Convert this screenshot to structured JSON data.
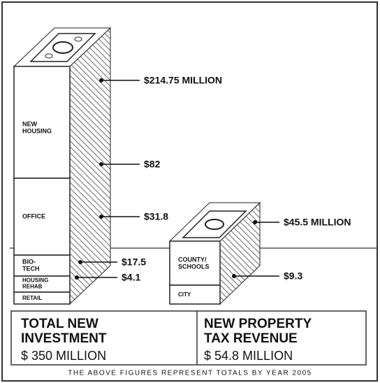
{
  "left_stack": {
    "segments": [
      {
        "label": [
          "NEW",
          "HOUSING"
        ],
        "amount": "$214.75 MILLION"
      },
      {
        "label": [
          "OFFICE"
        ],
        "amount": "$82"
      },
      {
        "label": [
          "BIO-",
          "TECH"
        ],
        "amount": "$31.8"
      },
      {
        "label": [
          "HOUSING",
          "REHAB"
        ],
        "amount": "$17.5"
      },
      {
        "label": [
          "RETAIL"
        ],
        "amount": "$4.1"
      }
    ]
  },
  "right_stack": {
    "segments": [
      {
        "label": [
          "COUNTY/",
          "SCHOOLS"
        ],
        "amount": "$45.5 MILLION"
      },
      {
        "label": [
          "CITY"
        ],
        "amount": "$9.3"
      }
    ]
  },
  "totals": [
    {
      "title": [
        "TOTAL NEW",
        "INVESTMENT"
      ],
      "amount": "$ 350 MILLION"
    },
    {
      "title": [
        "NEW PROPERTY",
        "TAX REVENUE"
      ],
      "amount": "$ 54.8 MILLION"
    }
  ],
  "footnote": "THE ABOVE FIGURES REPRESENT TOTALS BY YEAR 2005"
}
